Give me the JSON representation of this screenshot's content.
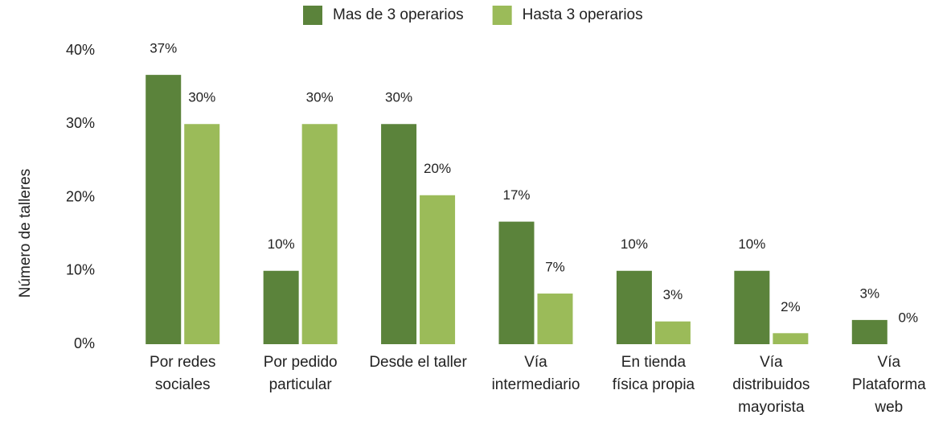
{
  "chart_data": {
    "type": "bar",
    "y_label": "Número de talleres",
    "categories": [
      "Por redes sociales",
      "Por pedido particular",
      "Desde el taller",
      "Vía intermediario",
      "En tienda física propia",
      "Vía distribuidos mayorista",
      "Vía Plataforma web"
    ],
    "series": [
      {
        "name": "Mas de 3 operarios",
        "color": "#5b833b",
        "values": [
          36.7,
          10,
          30,
          16.7,
          10,
          10,
          3.3
        ],
        "value_labels": [
          "37%",
          "10%",
          "30%",
          "17%",
          "10%",
          "10%",
          "3%"
        ]
      },
      {
        "name": "Hasta 3 operarios",
        "color": "#9bbb59",
        "values": [
          30,
          30,
          20.3,
          6.9,
          3.1,
          1.5,
          0
        ],
        "value_labels": [
          "30%",
          "30%",
          "20%",
          "7%",
          "3%",
          "2%",
          "0%"
        ]
      }
    ],
    "ylim": [
      0,
      40
    ],
    "yticks": [
      {
        "value": 0,
        "label": "0%"
      },
      {
        "value": 10,
        "label": "10%"
      },
      {
        "value": 20,
        "label": "20%"
      },
      {
        "value": 30,
        "label": "30%"
      },
      {
        "value": 40,
        "label": "40%"
      }
    ],
    "legend": "top",
    "grid": false
  }
}
